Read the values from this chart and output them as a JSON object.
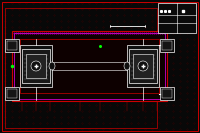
{
  "bg_color": "#080808",
  "dot_color": "#4a0000",
  "outer_border_color": "#cc0000",
  "car_body_edge_color": "#cc0000",
  "car_body_fill": "#0d0000",
  "purple_line_color": "#cc00cc",
  "white_color": "#ffffff",
  "green_color": "#00ff00",
  "cyan_color": "#00cccc",
  "gray_fill": "#151515",
  "axle_fill": "#0a0a0a",
  "title_block_fill": "#0a0a0a",
  "fig_width": 2.0,
  "fig_height": 1.33,
  "dpi": 100,
  "xlim": [
    0,
    200
  ],
  "ylim": [
    0,
    133
  ]
}
